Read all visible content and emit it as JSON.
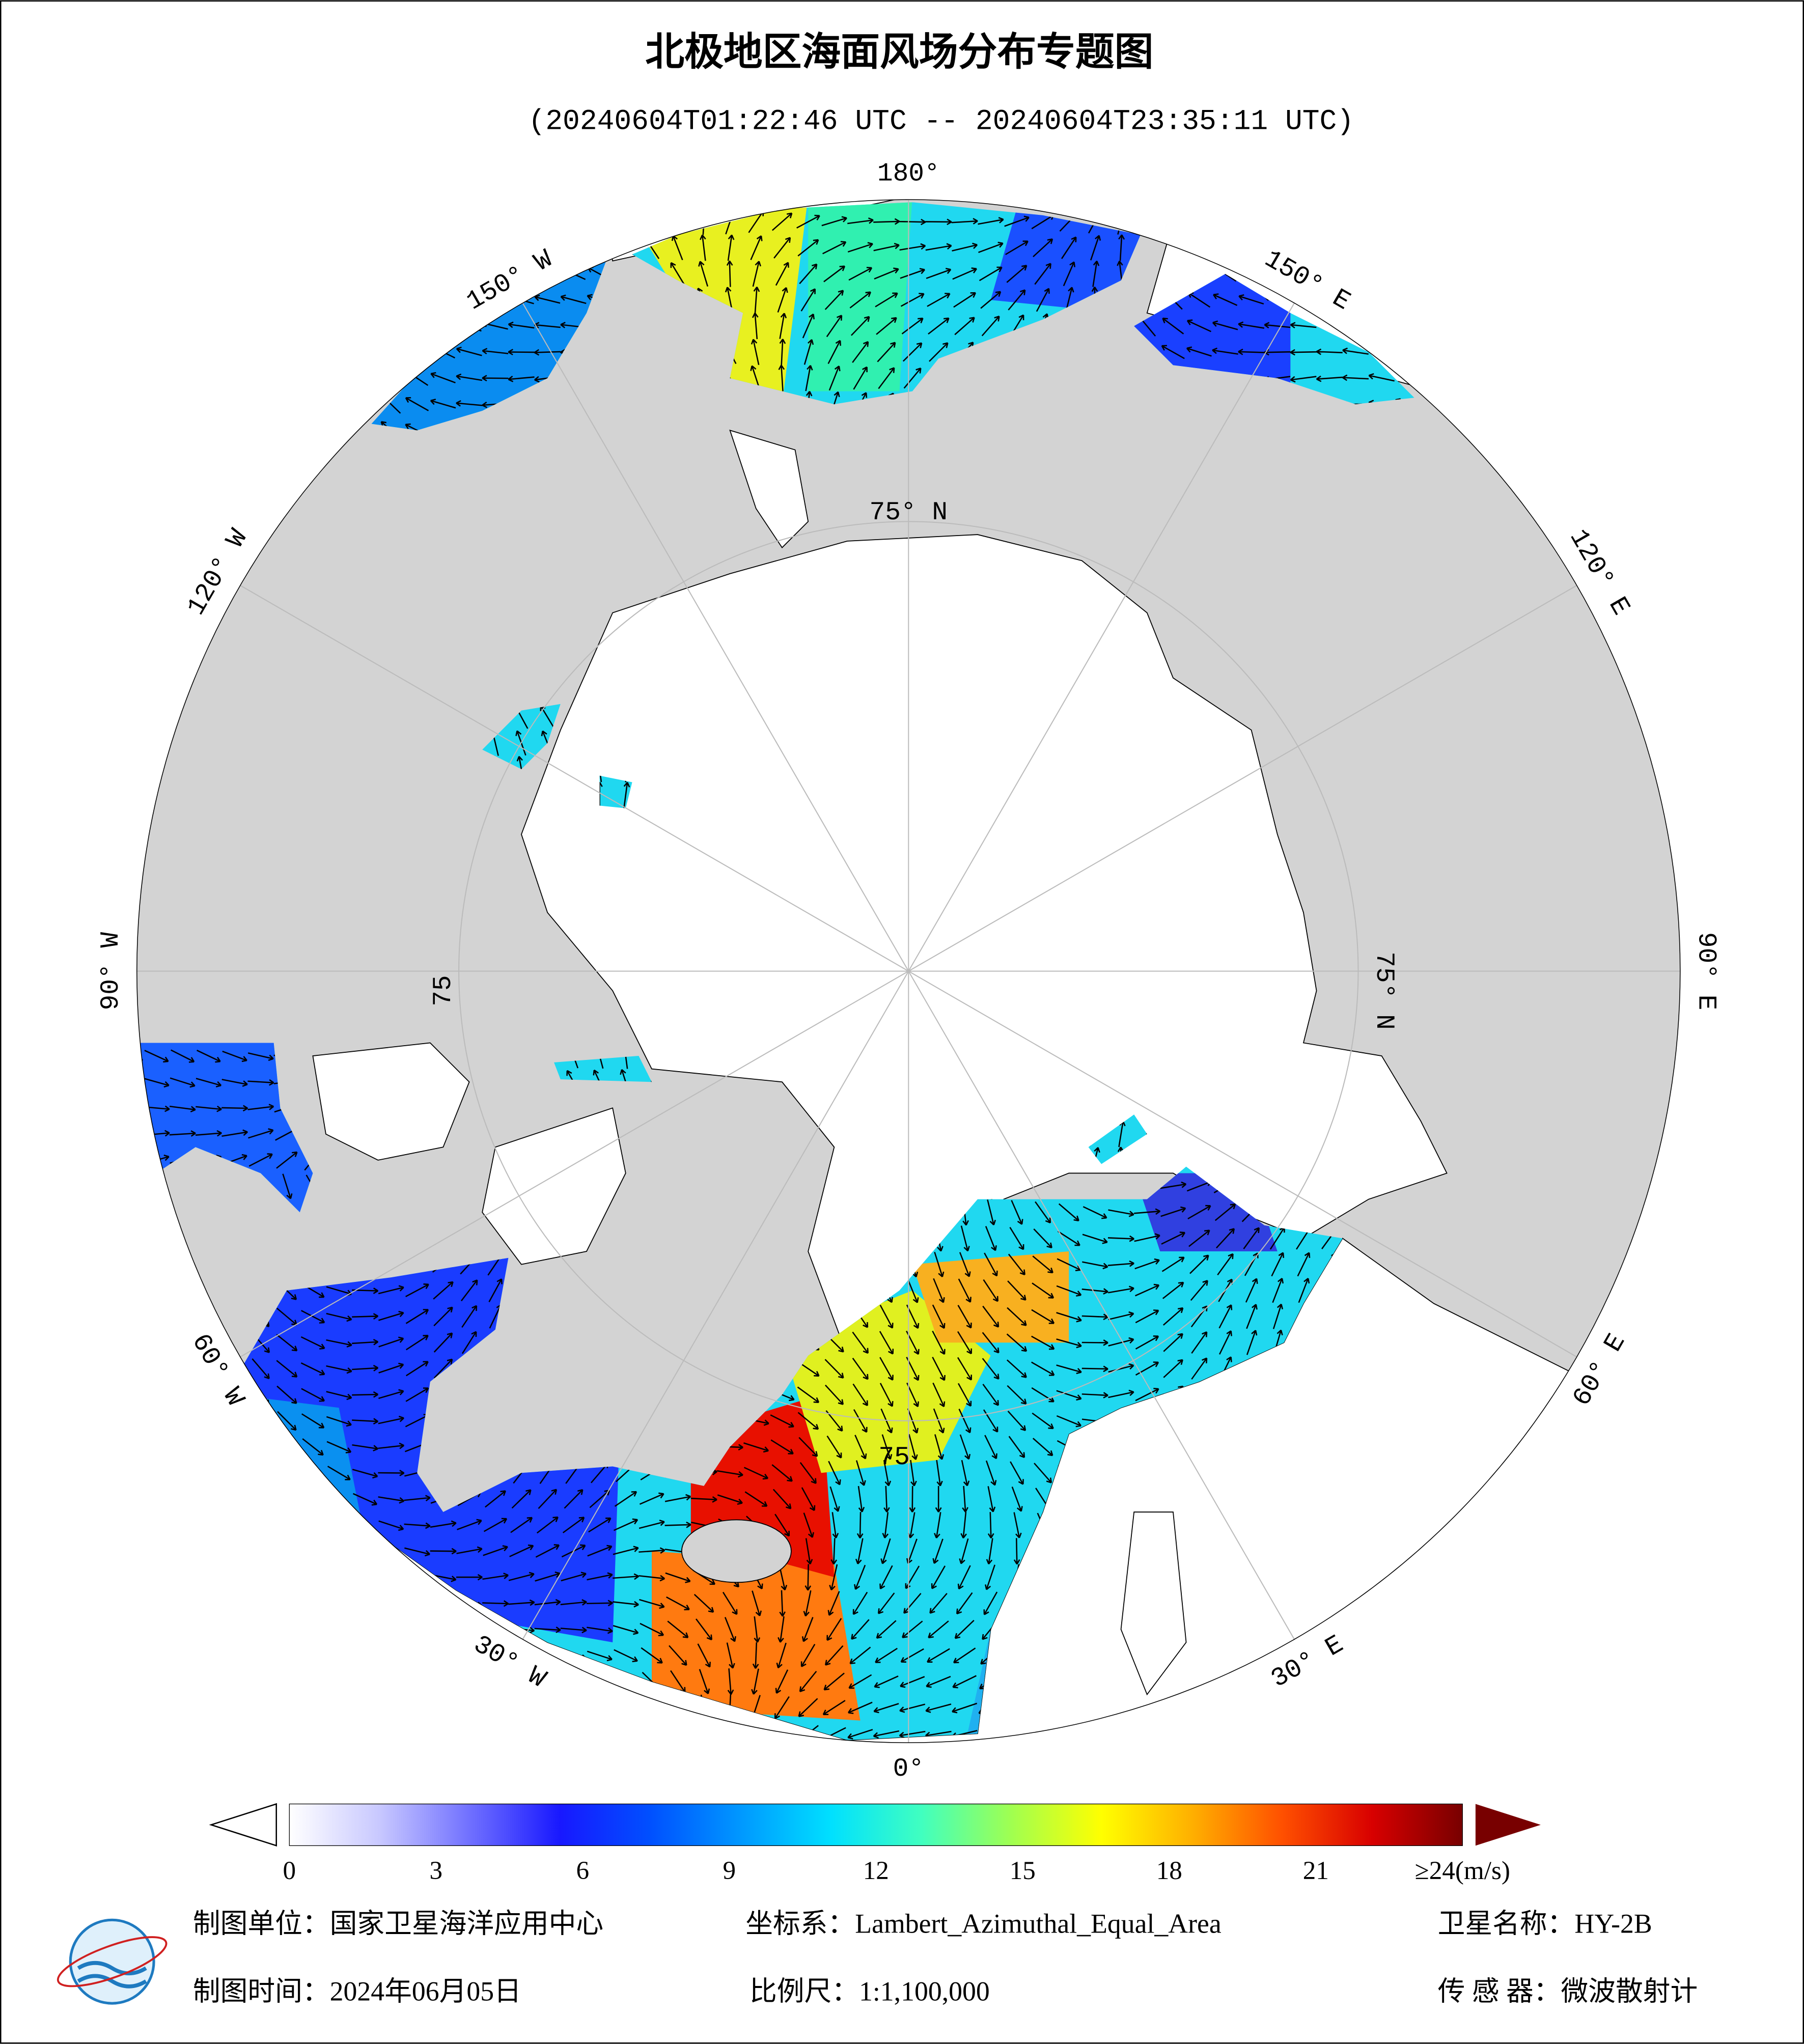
{
  "header": {
    "title": "北极地区海面风场分布专题图",
    "subtitle": "(20240604T01:22:46 UTC -- 20240604T23:35:11 UTC)"
  },
  "map": {
    "longitude_labels": [
      "180°",
      "150° E",
      "120° E",
      "90° E",
      "60° E",
      "30° E",
      "0°",
      "30° W",
      "60° W",
      "90° W",
      "120° W",
      "150° W"
    ],
    "latitude_labels": [
      "75° N",
      "75° N",
      "75",
      "75"
    ]
  },
  "colorbar": {
    "range": [
      0,
      24
    ],
    "ticks": [
      0,
      3,
      6,
      9,
      12,
      15,
      18,
      21
    ],
    "over_label": "≥24(m/s)",
    "colors": [
      "#ffffff",
      "#c8c8ff",
      "#7070ff",
      "#1818ff",
      "#0050ff",
      "#0098ff",
      "#00e0ff",
      "#40ffc0",
      "#a0ff50",
      "#ffff00",
      "#ffb000",
      "#ff5000",
      "#d80000",
      "#780000"
    ]
  },
  "footer": {
    "unit": "制图单位：国家卫星海洋应用中心",
    "projection": "坐标系：Lambert_Azimuthal_Equal_Area",
    "satellite": "卫星名称：HY-2B",
    "date": "制图时间：2024年06月05日",
    "scale": "比例尺：1:1,100,000",
    "sensor": "传 感 器：微波散射计"
  }
}
